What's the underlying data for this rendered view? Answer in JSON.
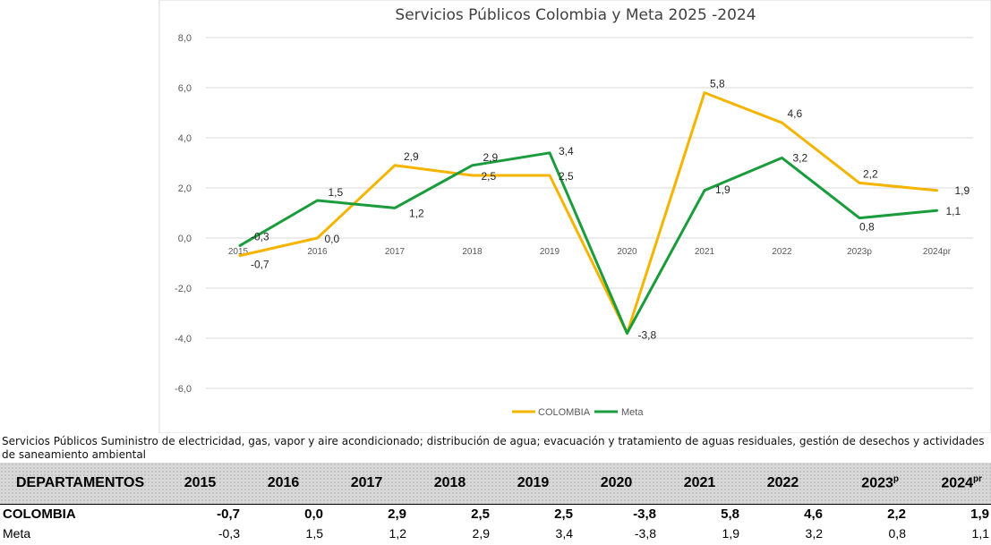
{
  "chart_data": {
    "type": "line",
    "title": "Servicios Públicos Colombia y  Meta 2025 -2024",
    "categories": [
      "2015",
      "2016",
      "2017",
      "2018",
      "2019",
      "2020",
      "2021",
      "2022",
      "2023p",
      "2024pr"
    ],
    "series": [
      {
        "name": "COLOMBIA",
        "color": "#f5b400",
        "values": [
          -0.7,
          0.0,
          2.9,
          2.5,
          2.5,
          -3.8,
          5.8,
          4.6,
          2.2,
          1.9
        ]
      },
      {
        "name": "Meta",
        "color": "#1a9c3c",
        "values": [
          -0.3,
          1.5,
          1.2,
          2.9,
          3.4,
          -3.8,
          1.9,
          3.2,
          0.8,
          1.1
        ]
      }
    ],
    "yticks": [
      "8,0",
      "6,0",
      "4,0",
      "2,0",
      "0,0",
      "-2,0",
      "-4,0",
      "-6,0"
    ],
    "ylim": [
      -7,
      8
    ],
    "grid": true,
    "legend": "bottom",
    "colombia_labels": [
      "-0,7",
      "0,0",
      "2,9",
      "2,5",
      "2,5",
      "",
      "5,8",
      "4,6",
      "2,2",
      "1,9"
    ],
    "meta_labels": [
      "-0,3",
      "1,5",
      "1,2",
      "2,9",
      "3,4",
      "-3,8",
      "1,9",
      "3,2",
      "0,8",
      "1,1"
    ]
  },
  "description": "Servicios Públicos Suministro de electricidad, gas, vapor y aire acondicionado; distribución de agua; evacuación y tratamiento de aguas residuales, gestión de desechos y actividades de saneamiento ambiental",
  "table": {
    "header_first": "DEPARTAMENTOS",
    "years": [
      "2015",
      "2016",
      "2017",
      "2018",
      "2019",
      "2020",
      "2021",
      "2022",
      "2023",
      "2024"
    ],
    "year_sup": [
      "",
      "",
      "",
      "",
      "",
      "",
      "",
      "",
      "p",
      "pr"
    ],
    "rows": [
      {
        "name": "COLOMBIA",
        "values": [
          "-0,7",
          "0,0",
          "2,9",
          "2,5",
          "2,5",
          "-3,8",
          "5,8",
          "4,6",
          "2,2",
          "1,9"
        ]
      },
      {
        "name": "Meta",
        "values": [
          "-0,3",
          "1,5",
          "1,2",
          "2,9",
          "3,4",
          "-3,8",
          "1,9",
          "3,2",
          "0,8",
          "1,1"
        ]
      }
    ]
  }
}
